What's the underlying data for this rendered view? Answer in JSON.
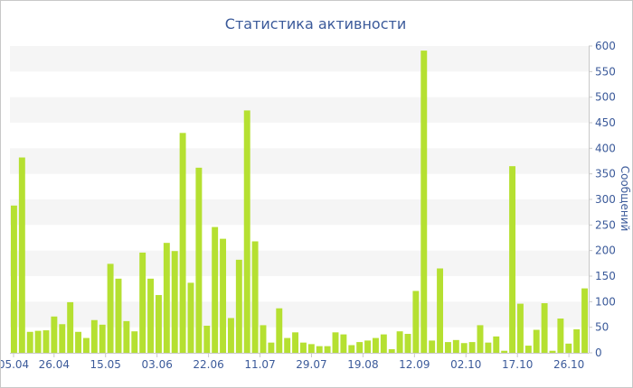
{
  "chart_data": {
    "type": "bar",
    "title": "Статистика активности",
    "xlabel": "",
    "ylabel": "Сообщений",
    "ylim": [
      0,
      600
    ],
    "y_axis_side": "right",
    "y_ticks": [
      0,
      50,
      100,
      150,
      200,
      250,
      300,
      350,
      400,
      450,
      500,
      550,
      600
    ],
    "x_tick_labels": [
      "05.04",
      "26.04",
      "15.05",
      "03.06",
      "22.06",
      "11.07",
      "29.07",
      "19.08",
      "12.09",
      "02.10",
      "17.10",
      "26.10"
    ],
    "grid": "horizontal alternating bands",
    "bar_color": "#b5e031",
    "band_color": "#f5f5f5",
    "values": [
      288,
      382,
      41,
      43,
      44,
      71,
      56,
      99,
      41,
      29,
      64,
      55,
      174,
      145,
      62,
      42,
      196,
      145,
      113,
      215,
      199,
      430,
      137,
      362,
      53,
      246,
      223,
      68,
      182,
      474,
      218,
      54,
      20,
      87,
      29,
      40,
      20,
      17,
      13,
      13,
      40,
      36,
      15,
      21,
      24,
      29,
      36,
      7,
      42,
      37,
      121,
      591,
      24,
      165,
      21,
      25,
      19,
      21,
      54,
      20,
      32,
      4,
      365,
      96,
      14,
      45,
      97,
      4,
      67,
      18,
      46,
      126
    ]
  }
}
